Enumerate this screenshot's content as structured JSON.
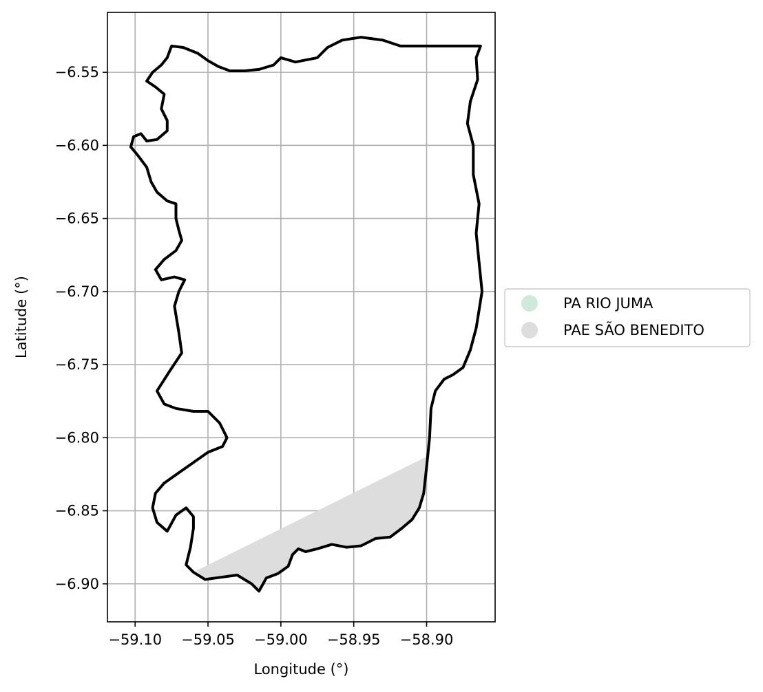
{
  "chart_data": {
    "type": "map",
    "xlabel": "Longitude (°)",
    "ylabel": "Latitude (°)",
    "xlim": [
      -59.119,
      -58.853
    ],
    "ylim": [
      -6.926,
      -6.509
    ],
    "x_ticks": [
      {
        "value": -59.1,
        "label": "−59.10"
      },
      {
        "value": -59.05,
        "label": "−59.05"
      },
      {
        "value": -59.0,
        "label": "−59.00"
      },
      {
        "value": -58.95,
        "label": "−58.95"
      },
      {
        "value": -58.9,
        "label": "−58.90"
      }
    ],
    "y_ticks": [
      {
        "value": -6.55,
        "label": "−6.55"
      },
      {
        "value": -6.6,
        "label": "−6.60"
      },
      {
        "value": -6.65,
        "label": "−6.65"
      },
      {
        "value": -6.7,
        "label": "−6.70"
      },
      {
        "value": -6.75,
        "label": "−6.75"
      },
      {
        "value": -6.8,
        "label": "−6.80"
      },
      {
        "value": -6.85,
        "label": "−6.85"
      },
      {
        "value": -6.9,
        "label": "−6.90"
      }
    ],
    "grid": true,
    "legend_position": "right",
    "legend": [
      {
        "label": "PA RIO JUMA",
        "color": "#cfeadb"
      },
      {
        "label": "PAE SÃO BENEDITO",
        "color": "#dddddd"
      }
    ],
    "boundary_color": "#000000",
    "boundary": [
      [
        -59.075,
        -6.532
      ],
      [
        -59.067,
        -6.533
      ],
      [
        -59.057,
        -6.537
      ],
      [
        -59.05,
        -6.542
      ],
      [
        -59.043,
        -6.546
      ],
      [
        -59.035,
        -6.549
      ],
      [
        -59.025,
        -6.549
      ],
      [
        -59.015,
        -6.548
      ],
      [
        -59.005,
        -6.545
      ],
      [
        -59.0,
        -6.54
      ],
      [
        -58.99,
        -6.543
      ],
      [
        -58.975,
        -6.54
      ],
      [
        -58.968,
        -6.533
      ],
      [
        -58.958,
        -6.528
      ],
      [
        -58.945,
        -6.526
      ],
      [
        -58.93,
        -6.528
      ],
      [
        -58.918,
        -6.532
      ],
      [
        -58.863,
        -6.532
      ],
      [
        -58.866,
        -6.54
      ],
      [
        -58.865,
        -6.555
      ],
      [
        -58.87,
        -6.57
      ],
      [
        -58.872,
        -6.585
      ],
      [
        -58.868,
        -6.6
      ],
      [
        -58.868,
        -6.62
      ],
      [
        -58.864,
        -6.64
      ],
      [
        -58.866,
        -6.66
      ],
      [
        -58.864,
        -6.68
      ],
      [
        -58.862,
        -6.7
      ],
      [
        -58.866,
        -6.725
      ],
      [
        -58.87,
        -6.74
      ],
      [
        -58.875,
        -6.752
      ],
      [
        -58.882,
        -6.757
      ],
      [
        -58.888,
        -6.76
      ],
      [
        -58.894,
        -6.768
      ],
      [
        -58.897,
        -6.78
      ],
      [
        -58.898,
        -6.8
      ],
      [
        -58.9,
        -6.82
      ],
      [
        -58.902,
        -6.838
      ],
      [
        -58.905,
        -6.848
      ],
      [
        -58.91,
        -6.856
      ],
      [
        -58.917,
        -6.862
      ],
      [
        -58.925,
        -6.868
      ],
      [
        -58.935,
        -6.869
      ],
      [
        -58.945,
        -6.874
      ],
      [
        -58.955,
        -6.875
      ],
      [
        -58.965,
        -6.873
      ],
      [
        -58.975,
        -6.876
      ],
      [
        -58.983,
        -6.878
      ],
      [
        -58.988,
        -6.876
      ],
      [
        -58.992,
        -6.88
      ],
      [
        -58.995,
        -6.888
      ],
      [
        -59.002,
        -6.893
      ],
      [
        -59.01,
        -6.896
      ],
      [
        -59.015,
        -6.905
      ],
      [
        -59.02,
        -6.9
      ],
      [
        -59.03,
        -6.894
      ],
      [
        -59.045,
        -6.896
      ],
      [
        -59.052,
        -6.897
      ],
      [
        -59.06,
        -6.892
      ],
      [
        -59.065,
        -6.887
      ],
      [
        -59.062,
        -6.875
      ],
      [
        -59.06,
        -6.862
      ],
      [
        -59.06,
        -6.854
      ],
      [
        -59.065,
        -6.848
      ],
      [
        -59.072,
        -6.853
      ],
      [
        -59.078,
        -6.864
      ],
      [
        -59.085,
        -6.858
      ],
      [
        -59.088,
        -6.848
      ],
      [
        -59.086,
        -6.838
      ],
      [
        -59.08,
        -6.831
      ],
      [
        -59.07,
        -6.824
      ],
      [
        -59.06,
        -6.817
      ],
      [
        -59.05,
        -6.81
      ],
      [
        -59.04,
        -6.806
      ],
      [
        -59.037,
        -6.8
      ],
      [
        -59.042,
        -6.79
      ],
      [
        -59.05,
        -6.782
      ],
      [
        -59.06,
        -6.782
      ],
      [
        -59.072,
        -6.78
      ],
      [
        -59.08,
        -6.777
      ],
      [
        -59.085,
        -6.768
      ],
      [
        -59.076,
        -6.754
      ],
      [
        -59.068,
        -6.742
      ],
      [
        -59.07,
        -6.728
      ],
      [
        -59.073,
        -6.71
      ],
      [
        -59.07,
        -6.7
      ],
      [
        -59.066,
        -6.692
      ],
      [
        -59.073,
        -6.69
      ],
      [
        -59.082,
        -6.692
      ],
      [
        -59.086,
        -6.685
      ],
      [
        -59.08,
        -6.678
      ],
      [
        -59.072,
        -6.672
      ],
      [
        -59.068,
        -6.665
      ],
      [
        -59.07,
        -6.658
      ],
      [
        -59.072,
        -6.65
      ],
      [
        -59.072,
        -6.64
      ],
      [
        -59.078,
        -6.638
      ],
      [
        -59.085,
        -6.632
      ],
      [
        -59.089,
        -6.625
      ],
      [
        -59.092,
        -6.615
      ],
      [
        -59.098,
        -6.607
      ],
      [
        -59.103,
        -6.601
      ],
      [
        -59.101,
        -6.594
      ],
      [
        -59.096,
        -6.592
      ],
      [
        -59.092,
        -6.597
      ],
      [
        -59.085,
        -6.596
      ],
      [
        -59.078,
        -6.59
      ],
      [
        -59.078,
        -6.583
      ],
      [
        -59.082,
        -6.575
      ],
      [
        -59.08,
        -6.565
      ],
      [
        -59.086,
        -6.56
      ],
      [
        -59.092,
        -6.556
      ],
      [
        -59.088,
        -6.55
      ],
      [
        -59.082,
        -6.545
      ],
      [
        -59.078,
        -6.54
      ],
      [
        -59.075,
        -6.532
      ]
    ],
    "regions": [
      {
        "name": "PAE SÃO BENEDITO",
        "fill": "#dddddd",
        "polygon": [
          [
            -59.058,
            -6.891
          ],
          [
            -58.898,
            -6.812
          ],
          [
            -58.9,
            -6.82
          ],
          [
            -58.902,
            -6.838
          ],
          [
            -58.905,
            -6.848
          ],
          [
            -58.91,
            -6.856
          ],
          [
            -58.917,
            -6.862
          ],
          [
            -58.925,
            -6.868
          ],
          [
            -58.935,
            -6.869
          ],
          [
            -58.945,
            -6.874
          ],
          [
            -58.955,
            -6.875
          ],
          [
            -58.965,
            -6.873
          ],
          [
            -58.975,
            -6.876
          ],
          [
            -58.983,
            -6.878
          ],
          [
            -58.988,
            -6.876
          ],
          [
            -58.992,
            -6.88
          ],
          [
            -58.995,
            -6.888
          ],
          [
            -59.002,
            -6.893
          ],
          [
            -59.01,
            -6.896
          ],
          [
            -59.015,
            -6.905
          ],
          [
            -59.02,
            -6.9
          ],
          [
            -59.03,
            -6.894
          ],
          [
            -59.045,
            -6.896
          ],
          [
            -59.052,
            -6.897
          ],
          [
            -59.058,
            -6.891
          ]
        ]
      }
    ]
  }
}
